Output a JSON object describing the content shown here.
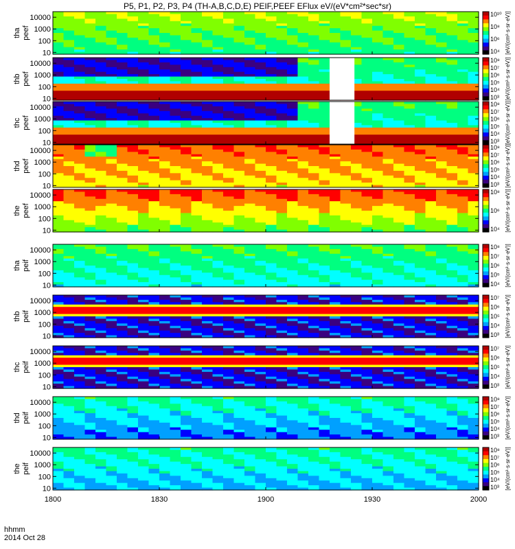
{
  "title": "P5, P1, P2, P3, P4 (TH-A,B,C,D,E) PEIF,PEEF EFlux eV/(eV*cm²*sec*sr)",
  "footer": {
    "time_label": "hhmm",
    "date_label": "2014 Oct 28"
  },
  "chart_data": {
    "type": "heatmap",
    "x_axis": {
      "range": [
        "1800",
        "2000"
      ],
      "tick_labels": [
        "1800",
        "1830",
        "1900",
        "1930",
        "2000"
      ]
    },
    "y_axis": {
      "scale": "log",
      "range_eV": [
        7,
        30000
      ],
      "tick_labels": [
        "10",
        "100",
        "1000",
        "10000"
      ]
    },
    "colorbar_units": "[eV/(cm²·s·sr·eV)]",
    "colormap": [
      "#000000",
      "#3a0080",
      "#0000ff",
      "#00a0ff",
      "#00ffff",
      "#00ff80",
      "#80ff00",
      "#ffff00",
      "#ff8000",
      "#ff0000",
      "#b00000"
    ],
    "panels": [
      {
        "probe": "tha",
        "product": "peef",
        "cb_labels": [
          "10⁴",
          "10⁶",
          "10⁸",
          "10¹⁰"
        ],
        "gap": null
      },
      {
        "probe": "thb",
        "product": "peef",
        "cb_labels": [
          "10³",
          "10⁴",
          "10⁵",
          "10⁶",
          "10⁷",
          "10⁸"
        ],
        "gap": [
          "1918",
          "1925"
        ]
      },
      {
        "probe": "thc",
        "product": "peef",
        "cb_labels": [
          "10³",
          "10⁴",
          "10⁵",
          "10⁶",
          "10⁷",
          "10⁸"
        ],
        "gap": [
          "1918",
          "1925"
        ]
      },
      {
        "probe": "thd",
        "product": "peef",
        "cb_labels": [
          "10³",
          "10⁴",
          "10⁵",
          "10⁶",
          "10⁷",
          "10⁸"
        ],
        "gap": null
      },
      {
        "probe": "the",
        "product": "peef",
        "cb_labels": [
          "10⁴",
          "10⁶",
          "10⁸"
        ],
        "gap": null
      },
      {
        "probe": "tha",
        "product": "peif",
        "cb_labels": [
          "10⁴",
          "10⁵",
          "10⁶",
          "10⁷",
          "10⁸"
        ],
        "gap": null
      },
      {
        "probe": "thb",
        "product": "peif",
        "cb_labels": [
          "10³",
          "10⁴",
          "10⁵",
          "10⁶",
          "10⁷"
        ],
        "gap": null
      },
      {
        "probe": "thc",
        "product": "peif",
        "cb_labels": [
          "10³",
          "10⁴",
          "10⁵",
          "10⁶",
          "10⁷"
        ],
        "gap": null
      },
      {
        "probe": "thd",
        "product": "peif",
        "cb_labels": [
          "10³",
          "10⁴",
          "10⁵",
          "10⁶",
          "10⁷",
          "10⁸"
        ],
        "gap": null
      },
      {
        "probe": "the",
        "product": "peif",
        "cb_labels": [
          "10³",
          "10⁴",
          "10⁵",
          "10⁶",
          "10⁷",
          "10⁸"
        ],
        "gap": null
      }
    ]
  }
}
